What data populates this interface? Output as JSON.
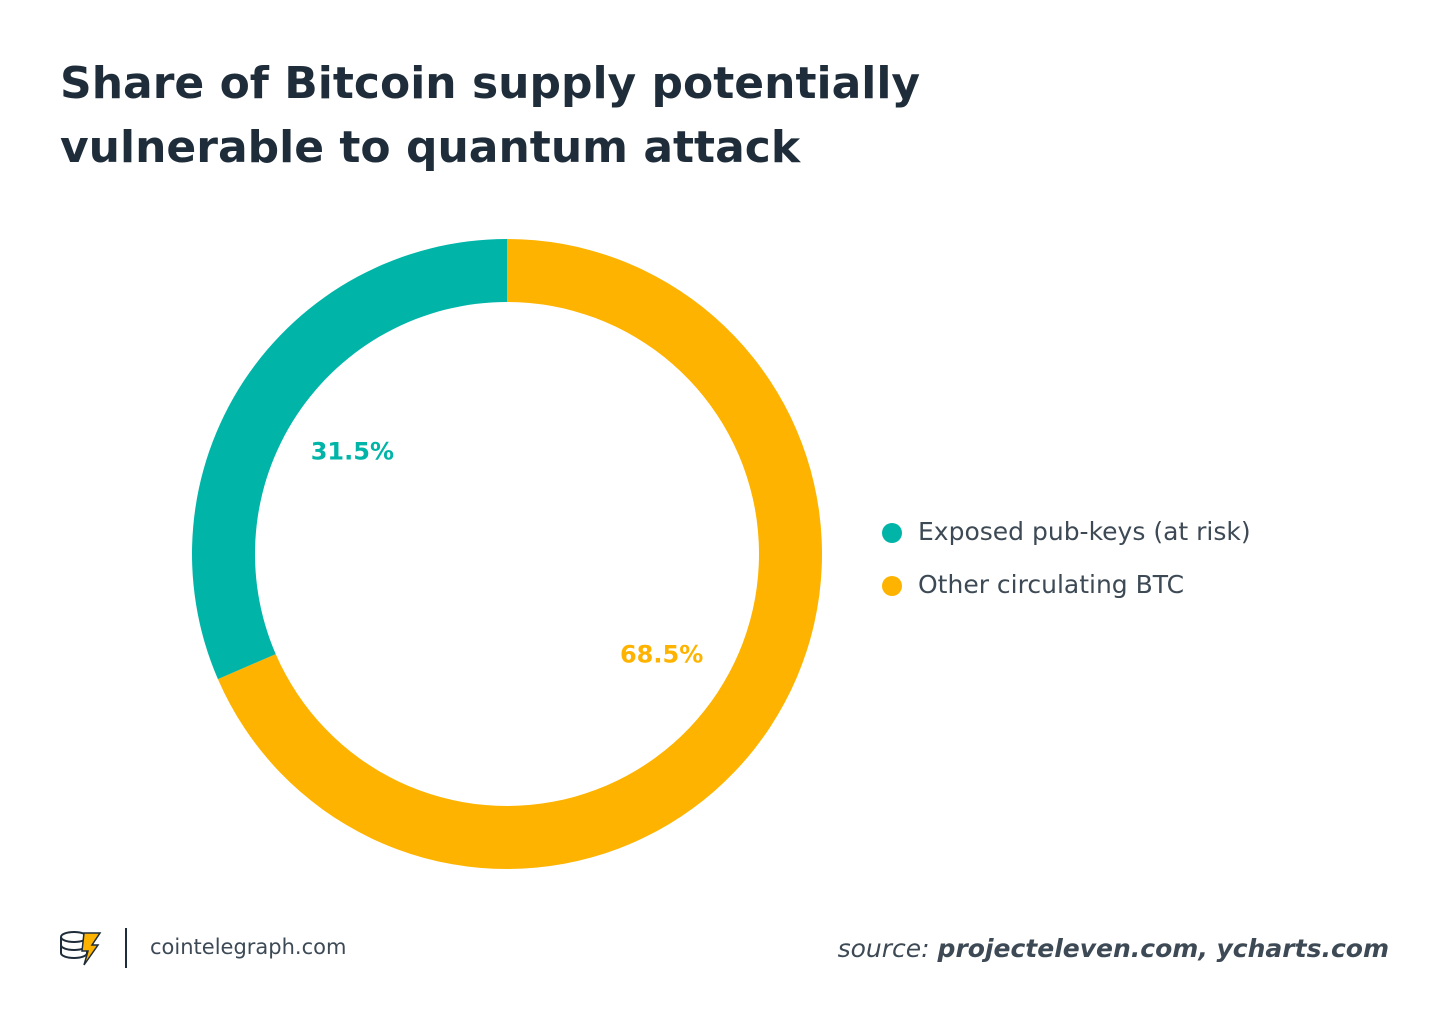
{
  "chart_data": {
    "type": "pie",
    "title": "Share of Bitcoin supply potentially vulnerable to quantum attack",
    "categories": [
      "Exposed pub-keys (at risk)",
      "Other circulating BTC"
    ],
    "values": [
      31.5,
      68.5
    ],
    "value_labels": [
      "31.5%",
      "68.5%"
    ],
    "colors": [
      "#00b5a8",
      "#fdb300"
    ],
    "legend": "right"
  },
  "footer": {
    "brand": "cointelegraph.com",
    "source_label": "source:",
    "source": "projecteleven.com, ycharts.com"
  }
}
